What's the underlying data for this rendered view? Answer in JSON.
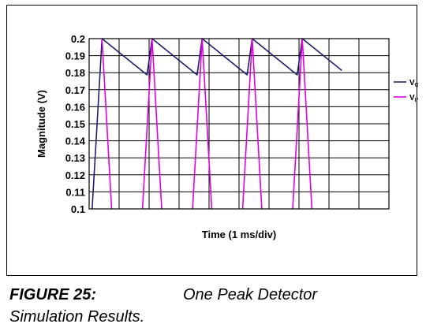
{
  "chart_data": {
    "type": "line",
    "title": "",
    "xlabel": "Time (1 ms/div)",
    "ylabel": "Magnitude (V)",
    "ylim": [
      0.1,
      0.2
    ],
    "yticks": [
      "0.2",
      "0.19",
      "0.18",
      "0.17",
      "0.16",
      "0.15",
      "0.14",
      "0.13",
      "0.12",
      "0.11",
      "0.1"
    ],
    "xlim": [
      0,
      10
    ],
    "x_divisions": 10,
    "grid": true,
    "legend_position": "right",
    "series": [
      {
        "name": "V",
        "subscript": "OUT",
        "color": "#1f1f6e",
        "points": [
          [
            0.1,
            0.1
          ],
          [
            0.43,
            0.2
          ],
          [
            1.93,
            0.1787
          ],
          [
            2.1,
            0.2
          ],
          [
            3.6,
            0.1787
          ],
          [
            3.77,
            0.2
          ],
          [
            5.27,
            0.1787
          ],
          [
            5.44,
            0.2
          ],
          [
            6.94,
            0.1787
          ],
          [
            7.11,
            0.2
          ],
          [
            8.43,
            0.1813
          ]
        ]
      },
      {
        "name": "V",
        "subscript": "IN",
        "color": "#e000e0",
        "points": [
          [
            0.43,
            0.2
          ],
          [
            0.75,
            0.1
          ],
          null,
          [
            1.78,
            0.1
          ],
          [
            2.1,
            0.2
          ],
          [
            2.42,
            0.1
          ],
          null,
          [
            3.45,
            0.1
          ],
          [
            3.77,
            0.2
          ],
          [
            4.09,
            0.1
          ],
          null,
          [
            5.12,
            0.1
          ],
          [
            5.44,
            0.2
          ],
          [
            5.76,
            0.1
          ],
          null,
          [
            6.79,
            0.1
          ],
          [
            7.11,
            0.2
          ],
          [
            7.43,
            0.1
          ]
        ]
      }
    ]
  },
  "caption": {
    "label": "FIGURE 25:",
    "text": "One Peak Detector",
    "line2": "Simulation Results."
  }
}
